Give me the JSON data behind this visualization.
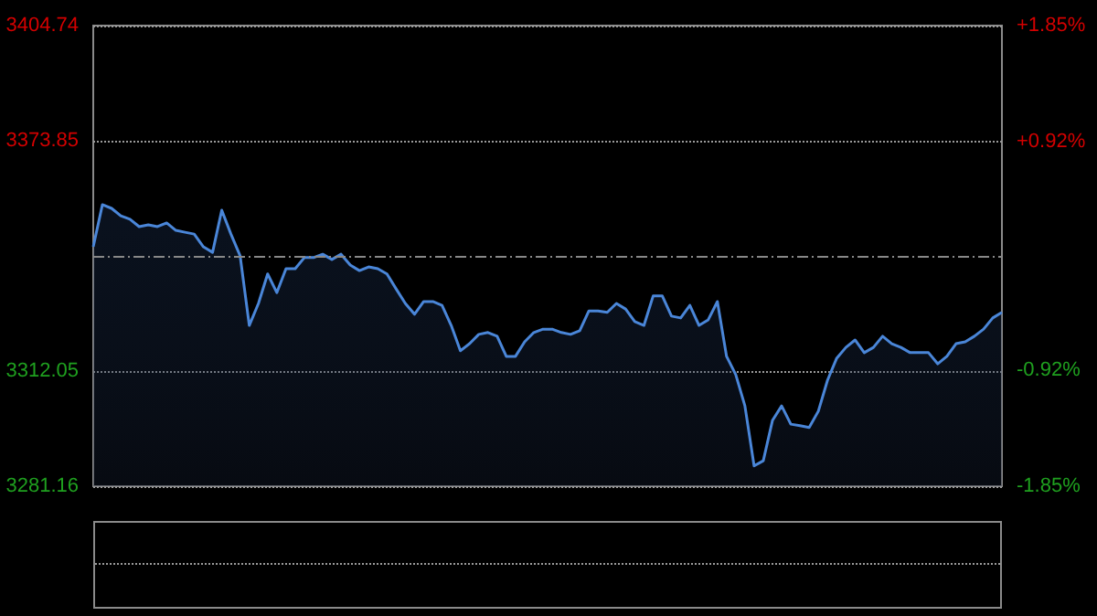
{
  "chart_data": {
    "type": "area",
    "categories": [
      null,
      null,
      null,
      null,
      null,
      null,
      null,
      null,
      null,
      null,
      null,
      null,
      null,
      null,
      null,
      null,
      null,
      null,
      null,
      null,
      null,
      null,
      null,
      null,
      null,
      null,
      null,
      null,
      null,
      null,
      null,
      null,
      null,
      null,
      null,
      null,
      null,
      null,
      null,
      null,
      null,
      null,
      null,
      null,
      null,
      null,
      null,
      null,
      null,
      null,
      null,
      null,
      null,
      null,
      null,
      null,
      null,
      null,
      null,
      null,
      null,
      null,
      null,
      null,
      null,
      null,
      null,
      null,
      null,
      null,
      null,
      null,
      null,
      null,
      null,
      null,
      null,
      null,
      null,
      null,
      null,
      null,
      null,
      null,
      null,
      null,
      null,
      null,
      null,
      null,
      null,
      null,
      null,
      null,
      null,
      null,
      null,
      null,
      null,
      null
    ],
    "series": [
      {
        "color": "#4a86d8",
        "values": [
          3345.4,
          3356.7,
          3355.7,
          3353.7,
          3352.8,
          3350.8,
          3351.3,
          3350.8,
          3351.8,
          3349.8,
          3349.3,
          3348.8,
          3345.4,
          3343.9,
          3355.2,
          3348.8,
          3343.0,
          3324.3,
          3330.2,
          3338.1,
          3333.1,
          3339.5,
          3339.5,
          3342.5,
          3342.5,
          3343.4,
          3342.0,
          3343.4,
          3340.5,
          3339.0,
          3340.0,
          3339.5,
          3338.1,
          3334.1,
          3330.2,
          3327.3,
          3330.7,
          3330.7,
          3329.7,
          3324.3,
          3317.5,
          3319.4,
          3321.9,
          3322.4,
          3321.4,
          3316.0,
          3316.0,
          3319.9,
          3322.4,
          3323.3,
          3323.3,
          3322.4,
          3321.9,
          3322.9,
          3328.2,
          3328.2,
          3327.8,
          3330.2,
          3328.7,
          3325.3,
          3324.3,
          3332.2,
          3332.2,
          3326.8,
          3326.3,
          3329.7,
          3324.3,
          3325.8,
          3330.7,
          3316.0,
          3311.1,
          3302.7,
          3286.6,
          3288.0,
          3298.8,
          3302.7,
          3297.8,
          3297.4,
          3296.9,
          3301.3,
          3309.6,
          3315.5,
          3318.4,
          3320.4,
          3317.0,
          3318.4,
          3321.4,
          3319.4,
          3318.4,
          3317.0,
          3317.0,
          3317.0,
          3314.0,
          3316.0,
          3319.4,
          3319.9,
          3321.4,
          3323.3,
          3326.3,
          3327.8
        ]
      }
    ],
    "ylim": [
      3281.16,
      3404.74
    ],
    "yticks": [
      3281.16,
      3312.05,
      3373.85,
      3404.74
    ],
    "y2lim": [
      -1.85,
      1.85
    ],
    "y2ticks": [
      {
        "value": -1.85,
        "label": "-1.85%"
      },
      {
        "value": -0.92,
        "label": "-0.92%"
      },
      {
        "value": 0.92,
        "label": "+0.92%"
      },
      {
        "value": 1.85,
        "label": "+1.85%"
      }
    ],
    "ref_lines": [
      {
        "axis": "y",
        "value": 3342.95,
        "line_style": "dashed",
        "color": "#888888"
      }
    ],
    "grid": "y",
    "marker": "none",
    "line_style": "solid"
  }
}
